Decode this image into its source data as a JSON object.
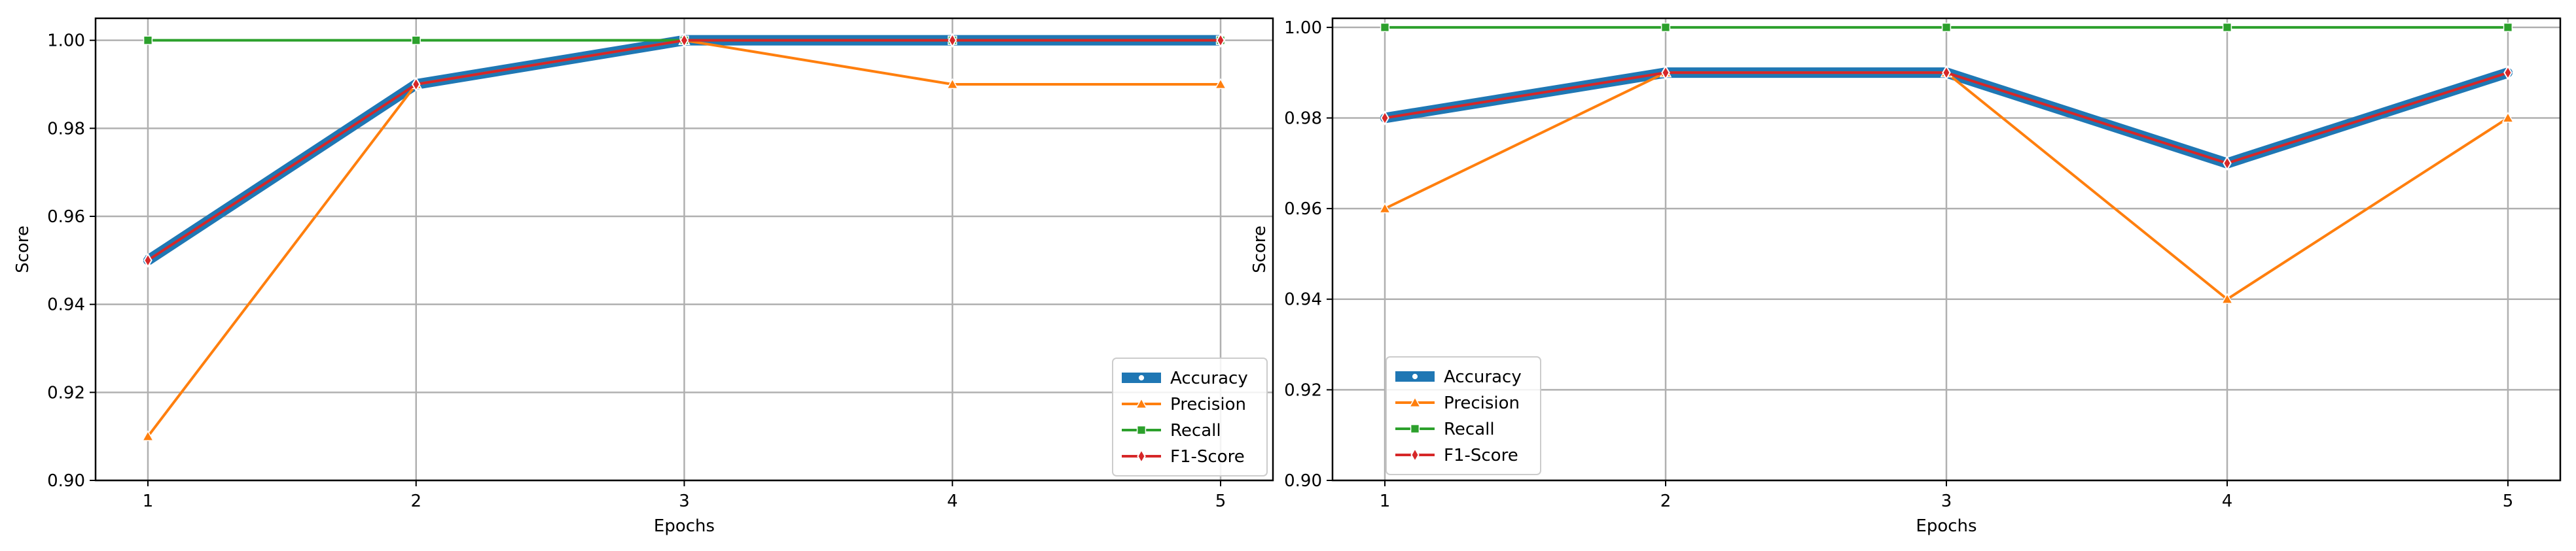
{
  "chart_data": [
    {
      "type": "line",
      "title": "",
      "xlabel": "Epochs",
      "ylabel": "Score",
      "x": [
        1,
        2,
        3,
        4,
        5
      ],
      "xticks": [
        "1",
        "2",
        "3",
        "4",
        "5"
      ],
      "ylim": [
        0.9,
        1.005
      ],
      "yticks": [
        "0.90",
        "0.92",
        "0.94",
        "0.96",
        "0.98",
        "1.00"
      ],
      "grid": true,
      "legend_position": "lower-right",
      "series": [
        {
          "name": "Accuracy",
          "values": [
            0.95,
            0.99,
            1.0,
            1.0,
            1.0
          ],
          "color": "#1f77b4",
          "marker": "circle"
        },
        {
          "name": "Precision",
          "values": [
            0.91,
            0.99,
            1.0,
            0.99,
            0.99
          ],
          "color": "#ff7f0e",
          "marker": "triangle"
        },
        {
          "name": "Recall",
          "values": [
            1.0,
            1.0,
            1.0,
            1.0,
            1.0
          ],
          "color": "#2ca02c",
          "marker": "square"
        },
        {
          "name": "F1-Score",
          "values": [
            0.95,
            0.99,
            1.0,
            1.0,
            1.0
          ],
          "color": "#d62728",
          "marker": "diamond"
        }
      ]
    },
    {
      "type": "line",
      "title": "",
      "xlabel": "Epochs",
      "ylabel": "Score",
      "x": [
        1,
        2,
        3,
        4,
        5
      ],
      "xticks": [
        "1",
        "2",
        "3",
        "4",
        "5"
      ],
      "ylim": [
        0.9,
        1.002
      ],
      "yticks": [
        "0.90",
        "0.92",
        "0.94",
        "0.96",
        "0.98",
        "1.00"
      ],
      "grid": true,
      "legend_position": "lower-left",
      "series": [
        {
          "name": "Accuracy",
          "values": [
            0.98,
            0.99,
            0.99,
            0.97,
            0.99
          ],
          "color": "#1f77b4",
          "marker": "circle"
        },
        {
          "name": "Precision",
          "values": [
            0.96,
            0.99,
            0.99,
            0.94,
            0.98
          ],
          "color": "#ff7f0e",
          "marker": "triangle"
        },
        {
          "name": "Recall",
          "values": [
            1.0,
            1.0,
            1.0,
            1.0,
            1.0
          ],
          "color": "#2ca02c",
          "marker": "square"
        },
        {
          "name": "F1-Score",
          "values": [
            0.98,
            0.99,
            0.99,
            0.97,
            0.99
          ],
          "color": "#d62728",
          "marker": "diamond"
        }
      ]
    }
  ]
}
